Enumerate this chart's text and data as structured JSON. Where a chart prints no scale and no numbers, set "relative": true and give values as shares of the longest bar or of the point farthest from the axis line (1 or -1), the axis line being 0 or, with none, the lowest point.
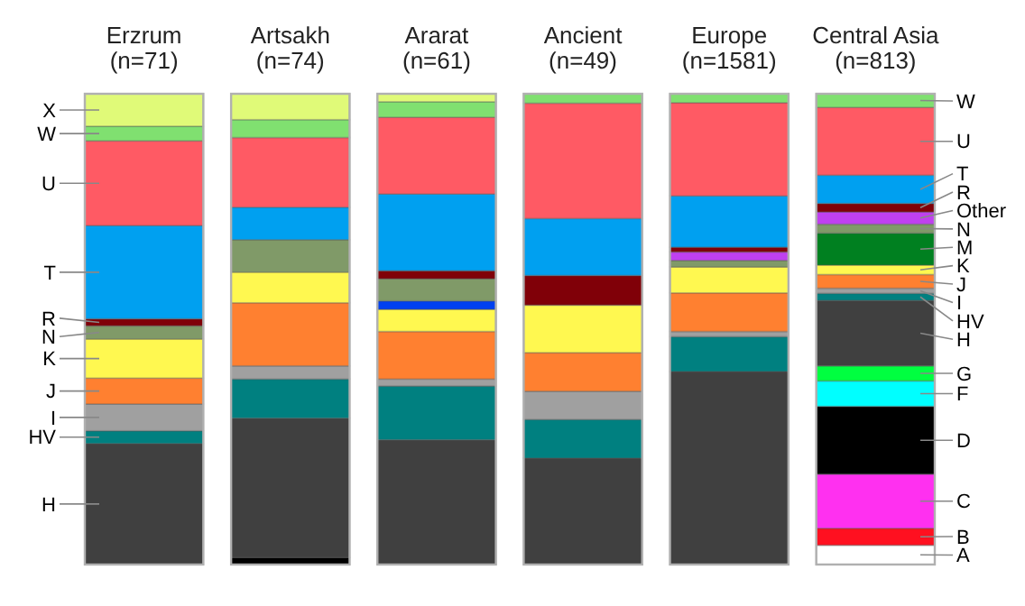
{
  "chart_data": {
    "type": "bar",
    "stacked": true,
    "relative": true,
    "legend": false,
    "categories": [
      "Erzrum\n(n=71)",
      "Artsakh\n(n=74)",
      "Ararat\n(n=61)",
      "Ancient\n(n=49)",
      "Europe\n(n=1581)",
      "Central Asia\n(n=813)"
    ],
    "series": [
      {
        "name": "A",
        "color": "#ffffff",
        "values": [
          0,
          0,
          0,
          0,
          0,
          0.041
        ]
      },
      {
        "name": "B",
        "color": "#ff1020",
        "values": [
          0,
          0,
          0,
          0,
          0,
          0.036
        ]
      },
      {
        "name": "C",
        "color": "#ff30f0",
        "values": [
          0,
          0,
          0,
          0,
          0,
          0.115
        ]
      },
      {
        "name": "D",
        "color": "#000000",
        "values": [
          0,
          0.015,
          0,
          0,
          0,
          0.144
        ]
      },
      {
        "name": "F",
        "color": "#00ffff",
        "values": [
          0,
          0,
          0,
          0,
          0,
          0.054
        ]
      },
      {
        "name": "G",
        "color": "#00ff40",
        "values": [
          0,
          0,
          0,
          0,
          0,
          0.032
        ]
      },
      {
        "name": "H",
        "color": "#404040",
        "values": [
          0.257,
          0.296,
          0.265,
          0.226,
          0.41,
          0.139
        ]
      },
      {
        "name": "HV",
        "color": "#008080",
        "values": [
          0.027,
          0.083,
          0.114,
          0.082,
          0.074,
          0.015
        ]
      },
      {
        "name": "I",
        "color": "#a0a0a0",
        "values": [
          0.057,
          0.028,
          0.015,
          0.06,
          0.011,
          0.011
        ]
      },
      {
        "name": "J",
        "color": "#ff8030",
        "values": [
          0.055,
          0.134,
          0.101,
          0.082,
          0.082,
          0.029
        ]
      },
      {
        "name": "K",
        "color": "#fff850",
        "values": [
          0.083,
          0.065,
          0.047,
          0.101,
          0.055,
          0.02
        ]
      },
      {
        "color": "#0040f0",
        "values": [
          0,
          0,
          0.018,
          0,
          0,
          0
        ]
      },
      {
        "name": "M",
        "color": "#008020",
        "values": [
          0,
          0,
          0,
          0,
          0,
          0.068
        ]
      },
      {
        "name": "N",
        "color": "#809a68",
        "values": [
          0.028,
          0.069,
          0.047,
          0,
          0.014,
          0.019
        ]
      },
      {
        "name": "Other",
        "color": "#c040f0",
        "values": [
          0,
          0,
          0,
          0,
          0.018,
          0.026
        ]
      },
      {
        "name": "R",
        "color": "#800008",
        "values": [
          0.015,
          0,
          0.017,
          0.063,
          0.01,
          0.018
        ]
      },
      {
        "name": "T",
        "color": "#00a0f0",
        "values": [
          0.198,
          0.069,
          0.163,
          0.121,
          0.109,
          0.06
        ]
      },
      {
        "name": "U",
        "color": "#ff5a64",
        "values": [
          0.18,
          0.148,
          0.163,
          0.245,
          0.198,
          0.144
        ]
      },
      {
        "name": "W",
        "color": "#80e070",
        "values": [
          0.031,
          0.038,
          0.033,
          0.02,
          0.019,
          0.029
        ]
      },
      {
        "name": "X",
        "color": "#e0fa78",
        "values": [
          0.069,
          0.055,
          0.017,
          0,
          0,
          0
        ]
      }
    ]
  }
}
